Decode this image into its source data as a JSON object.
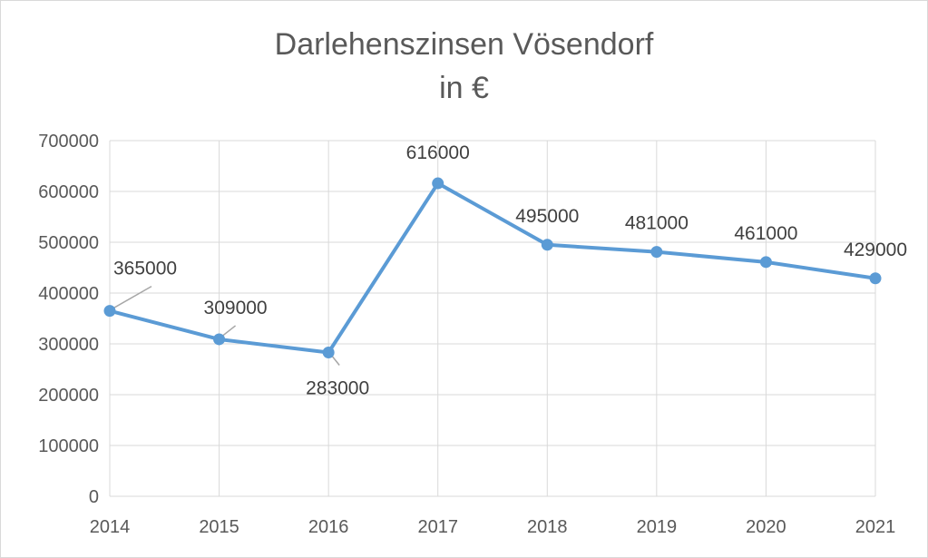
{
  "chart_data": {
    "type": "line",
    "title_lines": [
      "Darlehenszinsen Vösendorf",
      "in €"
    ],
    "xlabel": "",
    "ylabel": "",
    "categories": [
      "2014",
      "2015",
      "2016",
      "2017",
      "2018",
      "2019",
      "2020",
      "2021"
    ],
    "series": [
      {
        "values": [
          365000,
          309000,
          283000,
          616000,
          495000,
          481000,
          461000,
          429000
        ],
        "color": "#5b9bd5"
      }
    ],
    "data_labels": [
      "365000",
      "309000",
      "283000",
      "616000",
      "495000",
      "481000",
      "461000",
      "429000"
    ],
    "ylim": [
      0,
      700000
    ],
    "yticks": [
      "0",
      "100000",
      "200000",
      "300000",
      "400000",
      "500000",
      "600000",
      "700000"
    ],
    "grid": true,
    "legend": "none"
  }
}
